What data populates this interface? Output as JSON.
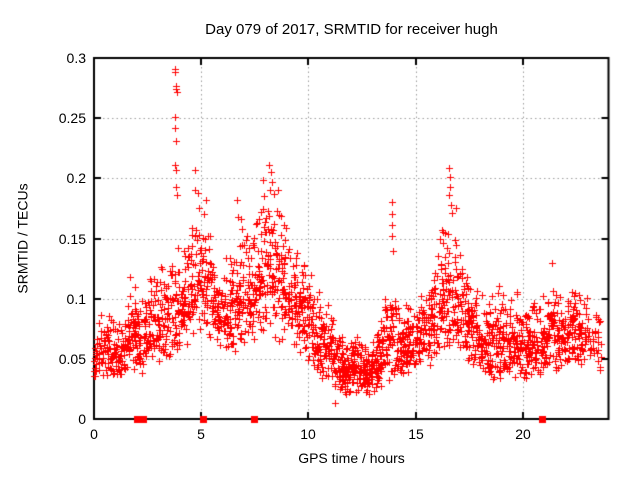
{
  "chart_data": {
    "type": "scatter",
    "title": "Day 079 of 2017, SRMTID for receiver hugh",
    "xlabel": "GPS time / hours",
    "ylabel": "SRMTID / TECUs",
    "xlim": [
      0,
      24
    ],
    "ylim": [
      0,
      0.3
    ],
    "xticks": [
      {
        "v": 0,
        "label": "0"
      },
      {
        "v": 5,
        "label": "5"
      },
      {
        "v": 10,
        "label": "10"
      },
      {
        "v": 15,
        "label": "15"
      },
      {
        "v": 20,
        "label": "20"
      }
    ],
    "yticks": [
      {
        "v": 0,
        "label": "0"
      },
      {
        "v": 0.05,
        "label": "0.05"
      },
      {
        "v": 0.1,
        "label": "0.1"
      },
      {
        "v": 0.15,
        "label": "0.15"
      },
      {
        "v": 0.2,
        "label": "0.2"
      },
      {
        "v": 0.25,
        "label": "0.25"
      },
      {
        "v": 0.3,
        "label": "0.3"
      }
    ],
    "grid": true,
    "legend": "none",
    "marker": "plus",
    "colors": {
      "points": "#ff0000",
      "grid": "#9b9b9b",
      "axis": "#000000",
      "background": "#ffffff"
    },
    "seed": 79,
    "density_bins": {
      "columns": [
        "t_start",
        "t_end",
        "y_min",
        "y_max",
        "count"
      ],
      "rows": [
        [
          0.0,
          0.5,
          0.03,
          0.088,
          40
        ],
        [
          0.5,
          1.0,
          0.033,
          0.093,
          45
        ],
        [
          1.0,
          1.5,
          0.03,
          0.085,
          45
        ],
        [
          1.5,
          2.0,
          0.04,
          0.134,
          50
        ],
        [
          2.0,
          2.5,
          0.032,
          0.11,
          48
        ],
        [
          2.5,
          3.0,
          0.05,
          0.13,
          50
        ],
        [
          3.0,
          3.5,
          0.045,
          0.13,
          50
        ],
        [
          3.5,
          4.0,
          0.05,
          0.16,
          48
        ],
        [
          4.0,
          4.5,
          0.06,
          0.15,
          45
        ],
        [
          4.5,
          5.0,
          0.07,
          0.18,
          45
        ],
        [
          5.0,
          5.5,
          0.065,
          0.17,
          45
        ],
        [
          5.5,
          6.0,
          0.06,
          0.13,
          50
        ],
        [
          6.0,
          6.5,
          0.055,
          0.14,
          50
        ],
        [
          6.5,
          7.0,
          0.05,
          0.175,
          50
        ],
        [
          7.0,
          7.5,
          0.055,
          0.16,
          50
        ],
        [
          7.5,
          8.0,
          0.065,
          0.195,
          50
        ],
        [
          8.0,
          8.5,
          0.07,
          0.205,
          55
        ],
        [
          8.5,
          9.0,
          0.06,
          0.19,
          52
        ],
        [
          9.0,
          9.5,
          0.06,
          0.155,
          50
        ],
        [
          9.5,
          10.0,
          0.05,
          0.145,
          50
        ],
        [
          10.0,
          10.5,
          0.038,
          0.115,
          50
        ],
        [
          10.5,
          11.0,
          0.03,
          0.1,
          50
        ],
        [
          11.0,
          11.5,
          0.025,
          0.1,
          55
        ],
        [
          11.5,
          12.0,
          0.018,
          0.065,
          58
        ],
        [
          12.0,
          12.5,
          0.022,
          0.08,
          58
        ],
        [
          12.5,
          13.0,
          0.018,
          0.068,
          58
        ],
        [
          13.0,
          13.5,
          0.022,
          0.075,
          55
        ],
        [
          13.5,
          14.0,
          0.03,
          0.125,
          50
        ],
        [
          14.0,
          14.5,
          0.035,
          0.095,
          50
        ],
        [
          14.5,
          15.0,
          0.035,
          0.1,
          50
        ],
        [
          15.0,
          15.5,
          0.04,
          0.11,
          50
        ],
        [
          15.5,
          16.0,
          0.045,
          0.125,
          50
        ],
        [
          16.0,
          16.5,
          0.05,
          0.165,
          52
        ],
        [
          16.5,
          17.0,
          0.06,
          0.195,
          52
        ],
        [
          17.0,
          17.5,
          0.055,
          0.135,
          50
        ],
        [
          17.5,
          18.0,
          0.04,
          0.115,
          50
        ],
        [
          18.0,
          18.5,
          0.035,
          0.105,
          50
        ],
        [
          18.5,
          19.0,
          0.03,
          0.115,
          50
        ],
        [
          19.0,
          19.5,
          0.035,
          0.11,
          50
        ],
        [
          19.5,
          20.0,
          0.03,
          0.115,
          50
        ],
        [
          20.0,
          20.5,
          0.035,
          0.1,
          50
        ],
        [
          20.5,
          21.0,
          0.03,
          0.1,
          50
        ],
        [
          21.0,
          21.5,
          0.04,
          0.116,
          50
        ],
        [
          21.5,
          22.0,
          0.04,
          0.105,
          50
        ],
        [
          22.0,
          22.5,
          0.045,
          0.12,
          50
        ],
        [
          22.5,
          23.0,
          0.045,
          0.112,
          45
        ],
        [
          23.0,
          23.7,
          0.04,
          0.095,
          35
        ]
      ]
    },
    "outlier_points": [
      [
        3.76,
        0.291
      ],
      [
        3.8,
        0.288
      ],
      [
        3.82,
        0.277
      ],
      [
        3.84,
        0.274
      ],
      [
        3.86,
        0.272
      ],
      [
        3.8,
        0.251
      ],
      [
        3.78,
        0.242
      ],
      [
        3.82,
        0.231
      ],
      [
        3.79,
        0.211
      ],
      [
        3.83,
        0.207
      ],
      [
        3.81,
        0.193
      ],
      [
        3.88,
        0.186
      ],
      [
        4.69,
        0.207
      ],
      [
        4.72,
        0.19
      ],
      [
        4.87,
        0.188
      ],
      [
        4.92,
        0.175
      ],
      [
        5.15,
        0.17
      ],
      [
        5.23,
        0.182
      ],
      [
        6.68,
        0.182
      ],
      [
        6.7,
        0.168
      ],
      [
        7.9,
        0.199
      ],
      [
        7.95,
        0.185
      ],
      [
        8.18,
        0.211
      ],
      [
        8.24,
        0.205
      ],
      [
        8.3,
        0.197
      ],
      [
        8.2,
        0.19
      ],
      [
        8.56,
        0.19
      ],
      [
        11.25,
        0.013
      ],
      [
        13.88,
        0.18
      ],
      [
        13.9,
        0.17
      ],
      [
        13.92,
        0.161
      ],
      [
        13.9,
        0.152
      ],
      [
        13.94,
        0.14
      ],
      [
        16.55,
        0.209
      ],
      [
        16.6,
        0.201
      ],
      [
        16.62,
        0.193
      ],
      [
        16.58,
        0.186
      ],
      [
        16.65,
        0.178
      ],
      [
        16.68,
        0.171
      ],
      [
        21.35,
        0.13
      ]
    ],
    "gap_markers": {
      "marker": "filled-square",
      "y": 0,
      "x": [
        2.0,
        2.3,
        5.1,
        7.45,
        20.9
      ]
    }
  }
}
